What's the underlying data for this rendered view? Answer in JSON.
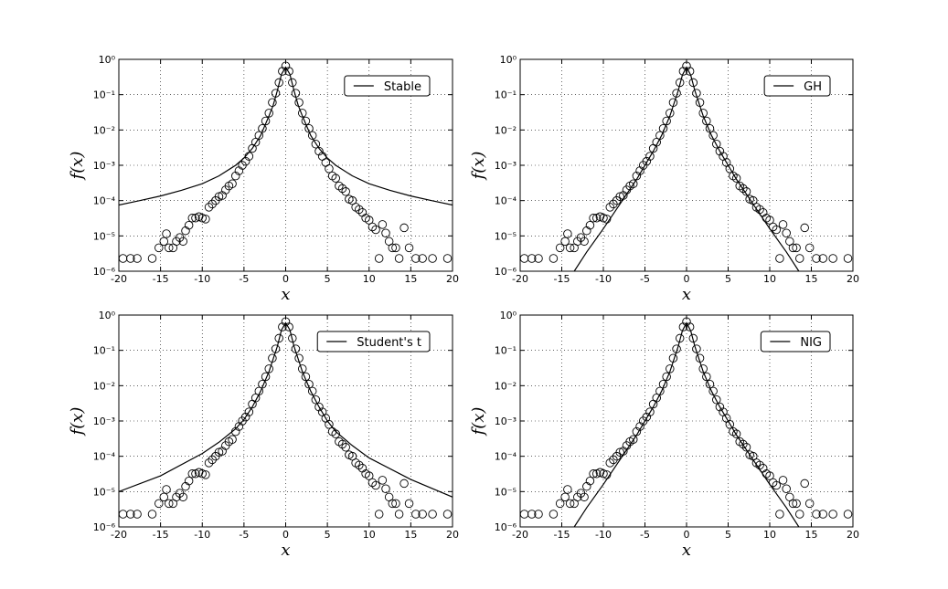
{
  "chart_data": [
    {
      "type": "line",
      "xlabel": "x",
      "ylabel": "f(x)",
      "xlim": [
        -20,
        20
      ],
      "ylim": [
        1e-06,
        1
      ],
      "yscale": "log",
      "grid": true,
      "legend": "upper right",
      "xticks": [
        -20,
        -15,
        -10,
        -5,
        0,
        5,
        10,
        15,
        20
      ],
      "yticks": [
        {
          "value": 1e-06,
          "label": "10⁻⁶"
        },
        {
          "value": 1e-05,
          "label": "10⁻⁵"
        },
        {
          "value": 0.0001,
          "label": "10⁻⁴"
        },
        {
          "value": 0.001,
          "label": "10⁻³"
        },
        {
          "value": 0.01,
          "label": "10⁻²"
        },
        {
          "value": 0.1,
          "label": "10⁻¹"
        },
        {
          "value": 1,
          "label": "10⁰"
        }
      ],
      "series": [
        {
          "name": "Stable",
          "color": "#000000",
          "x": [
            -20,
            -17.5,
            -15,
            -12.5,
            -10,
            -8,
            -6,
            -5,
            -4,
            -3,
            -2,
            -1.5,
            -1,
            -0.5,
            0,
            0.5,
            1,
            1.5,
            2,
            3,
            4,
            5,
            6,
            8,
            10,
            12.5,
            15,
            17.5,
            20
          ],
          "values": [
            7.5e-05,
            0.0001,
            0.000135,
            0.000195,
            0.0003,
            0.0005,
            0.001,
            0.0016,
            0.003,
            0.007,
            0.025,
            0.05,
            0.13,
            0.38,
            0.6,
            0.38,
            0.13,
            0.05,
            0.025,
            0.007,
            0.003,
            0.0016,
            0.001,
            0.0005,
            0.0003,
            0.000195,
            0.000135,
            0.0001,
            7.5e-05
          ]
        }
      ],
      "points": {
        "marker": "open-circle",
        "color": "#000000",
        "x": [
          -19.5,
          -18.6,
          -17.8,
          -16,
          -15.2,
          -14.6,
          -14.3,
          -14,
          -13.5,
          -13.1,
          -12.7,
          -12.3,
          -12,
          -11.6,
          -11.2,
          -10.8,
          -10.4,
          -10,
          -9.6,
          -9.2,
          -8.8,
          -8.4,
          -8,
          -7.6,
          -7.2,
          -6.8,
          -6.4,
          -6,
          -5.6,
          -5.2,
          -4.8,
          -4.4,
          -4,
          -3.6,
          -3.2,
          -2.8,
          -2.4,
          -2,
          -1.6,
          -1.2,
          -0.8,
          -0.4,
          0,
          0.4,
          0.8,
          1.2,
          1.6,
          2,
          2.4,
          2.8,
          3.2,
          3.6,
          4,
          4.4,
          4.8,
          5.2,
          5.6,
          6,
          6.4,
          6.8,
          7.2,
          7.6,
          8,
          8.4,
          8.8,
          9.2,
          9.6,
          10,
          10.4,
          10.8,
          11.2,
          11.6,
          12,
          12.4,
          12.8,
          13.2,
          13.6,
          14.2,
          14.8,
          15.6,
          16.4,
          17.6,
          19.4
        ],
        "values": [
          2.3e-06,
          2.3e-06,
          2.3e-06,
          2.3e-06,
          4.6e-06,
          7e-06,
          1.15e-05,
          4.6e-06,
          4.6e-06,
          7e-06,
          9e-06,
          7e-06,
          1.4e-05,
          2e-05,
          3.2e-05,
          3.2e-05,
          3.5e-05,
          3.2e-05,
          3e-05,
          6.5e-05,
          8e-05,
          0.0001,
          0.00013,
          0.00014,
          0.0002,
          0.00026,
          0.0003,
          0.0005,
          0.0007,
          0.001,
          0.0013,
          0.0018,
          0.003,
          0.0045,
          0.007,
          0.011,
          0.018,
          0.03,
          0.06,
          0.11,
          0.22,
          0.46,
          0.65,
          0.46,
          0.22,
          0.11,
          0.06,
          0.03,
          0.018,
          0.011,
          0.007,
          0.004,
          0.0025,
          0.0018,
          0.0012,
          0.0008,
          0.0005,
          0.00043,
          0.00026,
          0.00022,
          0.00018,
          0.00011,
          0.0001,
          6.5e-05,
          5.6e-05,
          4.6e-05,
          3.2e-05,
          2.8e-05,
          1.8e-05,
          1.5e-05,
          2.3e-06,
          2.1e-05,
          1.2e-05,
          7e-06,
          4.6e-06,
          4.6e-06,
          2.3e-06,
          1.7e-05,
          4.6e-06,
          2.3e-06,
          2.3e-06,
          2.3e-06,
          2.3e-06
        ]
      }
    },
    {
      "type": "line",
      "xlabel": "x",
      "ylabel": "f(x)",
      "xlim": [
        -20,
        20
      ],
      "ylim": [
        1e-06,
        1
      ],
      "yscale": "log",
      "grid": true,
      "legend": "upper right",
      "xticks": [
        -20,
        -15,
        -10,
        -5,
        0,
        5,
        10,
        15,
        20
      ],
      "yticks": [
        {
          "value": 1e-06,
          "label": "10⁻⁶"
        },
        {
          "value": 1e-05,
          "label": "10⁻⁵"
        },
        {
          "value": 0.0001,
          "label": "10⁻⁴"
        },
        {
          "value": 0.001,
          "label": "10⁻³"
        },
        {
          "value": 0.01,
          "label": "10⁻²"
        },
        {
          "value": 0.1,
          "label": "10⁻¹"
        },
        {
          "value": 1,
          "label": "10⁰"
        }
      ],
      "series": [
        {
          "name": "GH",
          "color": "#000000",
          "x": [
            -13.5,
            -12,
            -10,
            -8,
            -6,
            -4,
            -3,
            -2,
            -1,
            -0.5,
            0,
            0.5,
            1,
            2,
            3,
            4,
            6,
            8,
            10,
            12,
            13.5
          ],
          "values": [
            1e-06,
            3.5e-06,
            1.6e-05,
            8e-05,
            0.0004,
            0.0025,
            0.007,
            0.025,
            0.13,
            0.36,
            0.6,
            0.36,
            0.13,
            0.025,
            0.007,
            0.0025,
            0.0004,
            8e-05,
            1.6e-05,
            3.5e-06,
            1e-06
          ]
        }
      ],
      "points": {
        "marker": "open-circle",
        "color": "#000000",
        "x": [
          -19.5,
          -18.6,
          -17.8,
          -16,
          -15.2,
          -14.6,
          -14.3,
          -14,
          -13.5,
          -13.1,
          -12.7,
          -12.3,
          -12,
          -11.6,
          -11.2,
          -10.8,
          -10.4,
          -10,
          -9.6,
          -9.2,
          -8.8,
          -8.4,
          -8,
          -7.6,
          -7.2,
          -6.8,
          -6.4,
          -6,
          -5.6,
          -5.2,
          -4.8,
          -4.4,
          -4,
          -3.6,
          -3.2,
          -2.8,
          -2.4,
          -2,
          -1.6,
          -1.2,
          -0.8,
          -0.4,
          0,
          0.4,
          0.8,
          1.2,
          1.6,
          2,
          2.4,
          2.8,
          3.2,
          3.6,
          4,
          4.4,
          4.8,
          5.2,
          5.6,
          6,
          6.4,
          6.8,
          7.2,
          7.6,
          8,
          8.4,
          8.8,
          9.2,
          9.6,
          10,
          10.4,
          10.8,
          11.2,
          11.6,
          12,
          12.4,
          12.8,
          13.2,
          13.6,
          14.2,
          14.8,
          15.6,
          16.4,
          17.6,
          19.4
        ],
        "values": [
          2.3e-06,
          2.3e-06,
          2.3e-06,
          2.3e-06,
          4.6e-06,
          7e-06,
          1.15e-05,
          4.6e-06,
          4.6e-06,
          7e-06,
          9e-06,
          7e-06,
          1.4e-05,
          2e-05,
          3.2e-05,
          3.2e-05,
          3.5e-05,
          3.2e-05,
          3e-05,
          6.5e-05,
          8e-05,
          0.0001,
          0.00013,
          0.00014,
          0.0002,
          0.00026,
          0.0003,
          0.0005,
          0.0007,
          0.001,
          0.0013,
          0.0018,
          0.003,
          0.0045,
          0.007,
          0.011,
          0.018,
          0.03,
          0.06,
          0.11,
          0.22,
          0.46,
          0.65,
          0.46,
          0.22,
          0.11,
          0.06,
          0.03,
          0.018,
          0.011,
          0.007,
          0.004,
          0.0025,
          0.0018,
          0.0012,
          0.0008,
          0.0005,
          0.00043,
          0.00026,
          0.00022,
          0.00018,
          0.00011,
          0.0001,
          6.5e-05,
          5.6e-05,
          4.6e-05,
          3.2e-05,
          2.8e-05,
          1.8e-05,
          1.5e-05,
          2.3e-06,
          2.1e-05,
          1.2e-05,
          7e-06,
          4.6e-06,
          4.6e-06,
          2.3e-06,
          1.7e-05,
          4.6e-06,
          2.3e-06,
          2.3e-06,
          2.3e-06,
          2.3e-06
        ]
      }
    },
    {
      "type": "line",
      "xlabel": "x",
      "ylabel": "f(x)",
      "xlim": [
        -20,
        20
      ],
      "ylim": [
        1e-06,
        1
      ],
      "yscale": "log",
      "grid": true,
      "legend": "upper right",
      "xticks": [
        -20,
        -15,
        -10,
        -5,
        0,
        5,
        10,
        15,
        20
      ],
      "yticks": [
        {
          "value": 1e-06,
          "label": "10⁻⁶"
        },
        {
          "value": 1e-05,
          "label": "10⁻⁵"
        },
        {
          "value": 0.0001,
          "label": "10⁻⁴"
        },
        {
          "value": 0.001,
          "label": "10⁻³"
        },
        {
          "value": 0.01,
          "label": "10⁻²"
        },
        {
          "value": 0.1,
          "label": "10⁻¹"
        },
        {
          "value": 1,
          "label": "10⁰"
        }
      ],
      "series": [
        {
          "name": "Student's t",
          "color": "#000000",
          "x": [
            -20,
            -15,
            -10,
            -8,
            -6,
            -5,
            -4,
            -3,
            -2,
            -1,
            -0.5,
            0,
            0.5,
            1,
            2,
            3,
            4,
            5,
            6,
            8,
            10,
            15,
            20
          ],
          "values": [
            1e-05,
            2.8e-05,
            0.00012,
            0.00025,
            0.0006,
            0.0011,
            0.0025,
            0.007,
            0.025,
            0.13,
            0.38,
            0.6,
            0.38,
            0.13,
            0.025,
            0.007,
            0.0025,
            0.001,
            0.0005,
            0.0002,
            9e-05,
            2.2e-05,
            7e-06
          ]
        }
      ],
      "points": {
        "marker": "open-circle",
        "color": "#000000",
        "x": [
          -19.5,
          -18.6,
          -17.8,
          -16,
          -15.2,
          -14.6,
          -14.3,
          -14,
          -13.5,
          -13.1,
          -12.7,
          -12.3,
          -12,
          -11.6,
          -11.2,
          -10.8,
          -10.4,
          -10,
          -9.6,
          -9.2,
          -8.8,
          -8.4,
          -8,
          -7.6,
          -7.2,
          -6.8,
          -6.4,
          -6,
          -5.6,
          -5.2,
          -4.8,
          -4.4,
          -4,
          -3.6,
          -3.2,
          -2.8,
          -2.4,
          -2,
          -1.6,
          -1.2,
          -0.8,
          -0.4,
          0,
          0.4,
          0.8,
          1.2,
          1.6,
          2,
          2.4,
          2.8,
          3.2,
          3.6,
          4,
          4.4,
          4.8,
          5.2,
          5.6,
          6,
          6.4,
          6.8,
          7.2,
          7.6,
          8,
          8.4,
          8.8,
          9.2,
          9.6,
          10,
          10.4,
          10.8,
          11.2,
          11.6,
          12,
          12.4,
          12.8,
          13.2,
          13.6,
          14.2,
          14.8,
          15.6,
          16.4,
          17.6,
          19.4
        ],
        "values": [
          2.3e-06,
          2.3e-06,
          2.3e-06,
          2.3e-06,
          4.6e-06,
          7e-06,
          1.15e-05,
          4.6e-06,
          4.6e-06,
          7e-06,
          9e-06,
          7e-06,
          1.4e-05,
          2e-05,
          3.2e-05,
          3.2e-05,
          3.5e-05,
          3.2e-05,
          3e-05,
          6.5e-05,
          8e-05,
          0.0001,
          0.00013,
          0.00014,
          0.0002,
          0.00026,
          0.0003,
          0.0005,
          0.0007,
          0.001,
          0.0013,
          0.0018,
          0.003,
          0.0045,
          0.007,
          0.011,
          0.018,
          0.03,
          0.06,
          0.11,
          0.22,
          0.46,
          0.65,
          0.46,
          0.22,
          0.11,
          0.06,
          0.03,
          0.018,
          0.011,
          0.007,
          0.004,
          0.0025,
          0.0018,
          0.0012,
          0.0008,
          0.0005,
          0.00043,
          0.00026,
          0.00022,
          0.00018,
          0.00011,
          0.0001,
          6.5e-05,
          5.6e-05,
          4.6e-05,
          3.2e-05,
          2.8e-05,
          1.8e-05,
          1.5e-05,
          2.3e-06,
          2.1e-05,
          1.2e-05,
          7e-06,
          4.6e-06,
          4.6e-06,
          2.3e-06,
          1.7e-05,
          4.6e-06,
          2.3e-06,
          2.3e-06,
          2.3e-06,
          2.3e-06
        ]
      }
    },
    {
      "type": "line",
      "xlabel": "x",
      "ylabel": "f(x)",
      "xlim": [
        -20,
        20
      ],
      "ylim": [
        1e-06,
        1
      ],
      "yscale": "log",
      "grid": true,
      "legend": "upper right",
      "xticks": [
        -20,
        -15,
        -10,
        -5,
        0,
        5,
        10,
        15,
        20
      ],
      "yticks": [
        {
          "value": 1e-06,
          "label": "10⁻⁶"
        },
        {
          "value": 1e-05,
          "label": "10⁻⁵"
        },
        {
          "value": 0.0001,
          "label": "10⁻⁴"
        },
        {
          "value": 0.001,
          "label": "10⁻³"
        },
        {
          "value": 0.01,
          "label": "10⁻²"
        },
        {
          "value": 0.1,
          "label": "10⁻¹"
        },
        {
          "value": 1,
          "label": "10⁰"
        }
      ],
      "series": [
        {
          "name": "NIG",
          "color": "#000000",
          "x": [
            -13.5,
            -12,
            -10,
            -8,
            -6,
            -4,
            -3,
            -2,
            -1,
            -0.5,
            0,
            0.5,
            1,
            2,
            3,
            4,
            6,
            8,
            10,
            12,
            13.5
          ],
          "values": [
            1e-06,
            3.5e-06,
            1.6e-05,
            8e-05,
            0.0004,
            0.0025,
            0.007,
            0.025,
            0.13,
            0.36,
            0.6,
            0.36,
            0.13,
            0.025,
            0.007,
            0.0025,
            0.0004,
            8e-05,
            1.6e-05,
            3.5e-06,
            1e-06
          ]
        }
      ],
      "points": {
        "marker": "open-circle",
        "color": "#000000",
        "x": [
          -19.5,
          -18.6,
          -17.8,
          -16,
          -15.2,
          -14.6,
          -14.3,
          -14,
          -13.5,
          -13.1,
          -12.7,
          -12.3,
          -12,
          -11.6,
          -11.2,
          -10.8,
          -10.4,
          -10,
          -9.6,
          -9.2,
          -8.8,
          -8.4,
          -8,
          -7.6,
          -7.2,
          -6.8,
          -6.4,
          -6,
          -5.6,
          -5.2,
          -4.8,
          -4.4,
          -4,
          -3.6,
          -3.2,
          -2.8,
          -2.4,
          -2,
          -1.6,
          -1.2,
          -0.8,
          -0.4,
          0,
          0.4,
          0.8,
          1.2,
          1.6,
          2,
          2.4,
          2.8,
          3.2,
          3.6,
          4,
          4.4,
          4.8,
          5.2,
          5.6,
          6,
          6.4,
          6.8,
          7.2,
          7.6,
          8,
          8.4,
          8.8,
          9.2,
          9.6,
          10,
          10.4,
          10.8,
          11.2,
          11.6,
          12,
          12.4,
          12.8,
          13.2,
          13.6,
          14.2,
          14.8,
          15.6,
          16.4,
          17.6,
          19.4
        ],
        "values": [
          2.3e-06,
          2.3e-06,
          2.3e-06,
          2.3e-06,
          4.6e-06,
          7e-06,
          1.15e-05,
          4.6e-06,
          4.6e-06,
          7e-06,
          9e-06,
          7e-06,
          1.4e-05,
          2e-05,
          3.2e-05,
          3.2e-05,
          3.5e-05,
          3.2e-05,
          3e-05,
          6.5e-05,
          8e-05,
          0.0001,
          0.00013,
          0.00014,
          0.0002,
          0.00026,
          0.0003,
          0.0005,
          0.0007,
          0.001,
          0.0013,
          0.0018,
          0.003,
          0.0045,
          0.007,
          0.011,
          0.018,
          0.03,
          0.06,
          0.11,
          0.22,
          0.46,
          0.65,
          0.46,
          0.22,
          0.11,
          0.06,
          0.03,
          0.018,
          0.011,
          0.007,
          0.004,
          0.0025,
          0.0018,
          0.0012,
          0.0008,
          0.0005,
          0.00043,
          0.00026,
          0.00022,
          0.00018,
          0.00011,
          0.0001,
          6.5e-05,
          5.6e-05,
          4.6e-05,
          3.2e-05,
          2.8e-05,
          1.8e-05,
          1.5e-05,
          2.3e-06,
          2.1e-05,
          1.2e-05,
          7e-06,
          4.6e-06,
          4.6e-06,
          2.3e-06,
          1.7e-05,
          4.6e-06,
          2.3e-06,
          2.3e-06,
          2.3e-06,
          2.3e-06
        ]
      }
    }
  ]
}
